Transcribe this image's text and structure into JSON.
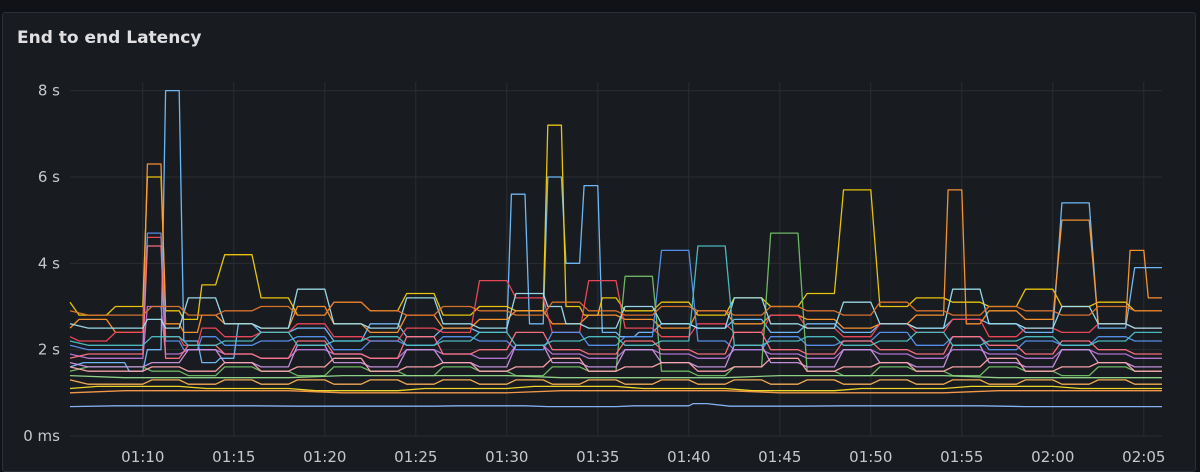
{
  "panel": {
    "title": "End to end Latency"
  },
  "chart_data": {
    "type": "line",
    "title": "End to end Latency",
    "x_ticks": [
      "01:10",
      "01:15",
      "01:20",
      "01:25",
      "01:30",
      "01:35",
      "01:40",
      "01:45",
      "01:50",
      "01:55",
      "02:00",
      "02:05"
    ],
    "y_ticks": [
      "0 ms",
      "2 s",
      "4 s",
      "6 s",
      "8 s"
    ],
    "x_unit": "minutes",
    "x_range": [
      "01:06",
      "02:06"
    ],
    "ylim": [
      0,
      8.2
    ],
    "grid": true,
    "legend": "none",
    "colors": {
      "background": "#181b1f",
      "grid": "#2a2d33",
      "series": [
        "#73bfff",
        "#f2cc0c",
        "#ff9830",
        "#f2495c",
        "#5794f2",
        "#b877d9",
        "#73bf69",
        "#ffb357",
        "#8ab8ff",
        "#ff7383",
        "#fade2a",
        "#ca95e5",
        "#96d98d",
        "#ff9f4d",
        "#9ee0f0",
        "#e0752d",
        "#4ec0c6",
        "#ffa6b0"
      ]
    },
    "series": [
      {
        "color": "#73bfff",
        "x": [
          0,
          3,
          4,
          5,
          6,
          7,
          8,
          9,
          10,
          12,
          14,
          16,
          18,
          20,
          22,
          24,
          25,
          26,
          27,
          28,
          29,
          30,
          31,
          32,
          34,
          36,
          38,
          40,
          42,
          44,
          46,
          48,
          50,
          52,
          54,
          56,
          58,
          60
        ],
        "values": [
          1.6,
          1.7,
          1.5,
          2.0,
          8.0,
          2.2,
          1.7,
          1.8,
          2.6,
          2.4,
          2.5,
          2.2,
          2.6,
          2.3,
          2.5,
          2.4,
          5.6,
          2.6,
          6.0,
          4.0,
          5.8,
          2.4,
          2.3,
          2.4,
          2.6,
          2.5,
          2.7,
          2.4,
          2.6,
          2.4,
          2.6,
          2.5,
          2.7,
          2.6,
          2.4,
          5.4,
          2.5,
          3.9
        ]
      },
      {
        "color": "#f2cc0c",
        "x": [
          0,
          2,
          4,
          5,
          6,
          7,
          8,
          10,
          12,
          14,
          16,
          18,
          20,
          22,
          24,
          26,
          27,
          28,
          29,
          30,
          32,
          34,
          36,
          38,
          40,
          42,
          44,
          46,
          48,
          50,
          52,
          54,
          56,
          58,
          60
        ],
        "values": [
          3.1,
          2.8,
          3.0,
          6.0,
          2.9,
          2.7,
          3.5,
          4.2,
          3.2,
          2.8,
          3.1,
          2.9,
          3.3,
          2.8,
          3.0,
          2.9,
          7.2,
          3.0,
          2.8,
          3.2,
          2.9,
          3.1,
          2.8,
          3.2,
          3.0,
          3.3,
          5.7,
          3.0,
          3.2,
          3.1,
          3.0,
          3.4,
          3.0,
          3.1,
          2.9
        ]
      },
      {
        "color": "#ff9830",
        "x": [
          0,
          2,
          4,
          5,
          6,
          7,
          8,
          10,
          12,
          14,
          16,
          18,
          20,
          22,
          24,
          26,
          28,
          30,
          32,
          34,
          36,
          38,
          40,
          42,
          44,
          46,
          48,
          49,
          50,
          52,
          54,
          56,
          58,
          59,
          60
        ],
        "values": [
          2.5,
          2.7,
          2.4,
          6.3,
          2.6,
          2.4,
          2.8,
          2.6,
          2.5,
          3.0,
          2.6,
          2.4,
          2.8,
          2.5,
          2.7,
          2.9,
          2.6,
          2.8,
          2.7,
          2.5,
          2.9,
          2.6,
          2.8,
          2.7,
          2.5,
          2.6,
          2.8,
          5.7,
          2.6,
          2.9,
          2.7,
          5.0,
          2.6,
          4.3,
          3.2
        ]
      },
      {
        "color": "#f2495c",
        "x": [
          0,
          2,
          4,
          5,
          6,
          7,
          8,
          10,
          12,
          14,
          16,
          18,
          20,
          22,
          24,
          26,
          28,
          30,
          32,
          34,
          36,
          38,
          40,
          42,
          44,
          46,
          48,
          50,
          52,
          54,
          56,
          58,
          60
        ],
        "values": [
          2.3,
          2.2,
          2.4,
          4.6,
          2.3,
          2.1,
          2.5,
          2.3,
          2.4,
          2.6,
          2.3,
          2.2,
          2.5,
          2.4,
          3.6,
          3.2,
          2.4,
          3.6,
          2.5,
          2.3,
          2.6,
          2.4,
          2.8,
          2.5,
          2.3,
          2.6,
          2.4,
          2.7,
          2.3,
          2.5,
          2.4,
          2.6,
          2.5
        ]
      },
      {
        "color": "#5794f2",
        "x": [
          0,
          4,
          5,
          6,
          7,
          8,
          10,
          12,
          14,
          16,
          18,
          20,
          22,
          24,
          26,
          28,
          30,
          32,
          34,
          36,
          38,
          40,
          42,
          44,
          46,
          48,
          50,
          52,
          54,
          56,
          58,
          60
        ],
        "values": [
          2.1,
          2.0,
          4.7,
          2.2,
          2.0,
          2.3,
          2.1,
          2.2,
          2.3,
          2.0,
          2.2,
          2.1,
          2.3,
          2.2,
          2.0,
          2.4,
          2.1,
          2.3,
          4.3,
          2.2,
          2.0,
          2.3,
          2.1,
          2.2,
          2.4,
          2.1,
          2.3,
          2.0,
          2.2,
          2.1,
          2.3,
          2.2
        ]
      },
      {
        "color": "#b877d9",
        "x": [
          0,
          4,
          5,
          6,
          8,
          10,
          12,
          14,
          16,
          18,
          20,
          22,
          24,
          26,
          28,
          30,
          32,
          34,
          36,
          38,
          40,
          42,
          44,
          46,
          48,
          50,
          52,
          54,
          56,
          58,
          60
        ],
        "values": [
          1.9,
          1.8,
          3.0,
          1.9,
          2.0,
          1.9,
          1.8,
          2.0,
          1.9,
          1.8,
          2.0,
          1.9,
          1.8,
          2.1,
          1.9,
          1.8,
          2.0,
          1.9,
          1.8,
          2.0,
          1.9,
          1.8,
          2.0,
          1.9,
          1.8,
          2.0,
          1.9,
          1.8,
          2.0,
          1.9,
          1.8
        ]
      },
      {
        "color": "#73bf69",
        "x": [
          0,
          4,
          6,
          8,
          10,
          12,
          14,
          16,
          18,
          20,
          22,
          24,
          26,
          28,
          30,
          32,
          34,
          36,
          38,
          40,
          42,
          44,
          46,
          48,
          50,
          52,
          54,
          56,
          58,
          60
        ],
        "values": [
          1.5,
          1.6,
          1.5,
          1.4,
          1.6,
          1.5,
          1.4,
          1.6,
          1.5,
          1.4,
          1.6,
          1.5,
          1.4,
          1.6,
          1.5,
          3.7,
          1.5,
          1.4,
          1.6,
          4.7,
          1.5,
          1.4,
          1.6,
          1.5,
          1.4,
          1.6,
          1.5,
          1.4,
          1.6,
          1.5
        ]
      },
      {
        "color": "#ffb357",
        "x": [
          0,
          4,
          6,
          8,
          10,
          12,
          14,
          16,
          18,
          20,
          22,
          24,
          26,
          28,
          30,
          32,
          34,
          36,
          38,
          40,
          42,
          44,
          46,
          48,
          50,
          52,
          54,
          56,
          58,
          60
        ],
        "values": [
          1.3,
          1.2,
          1.3,
          1.2,
          1.3,
          1.2,
          1.3,
          1.2,
          1.3,
          1.2,
          1.3,
          1.2,
          1.3,
          1.2,
          1.3,
          1.2,
          1.3,
          1.2,
          1.3,
          1.2,
          1.3,
          1.2,
          1.3,
          1.2,
          1.3,
          1.2,
          1.3,
          1.2,
          1.3,
          1.2
        ]
      },
      {
        "color": "#8ab8ff",
        "x": [
          0,
          10,
          20,
          25,
          30,
          34,
          35,
          40,
          50,
          60
        ],
        "values": [
          0.68,
          0.7,
          0.69,
          0.7,
          0.68,
          0.7,
          0.75,
          0.69,
          0.7,
          0.68
        ]
      },
      {
        "color": "#ff7383",
        "x": [
          0,
          4,
          5,
          6,
          8,
          10,
          12,
          14,
          16,
          18,
          20,
          22,
          24,
          26,
          28,
          30,
          32,
          34,
          36,
          38,
          40,
          42,
          44,
          46,
          48,
          50,
          52,
          54,
          56,
          58,
          60
        ],
        "values": [
          1.8,
          1.9,
          4.4,
          1.8,
          2.1,
          1.9,
          1.8,
          2.2,
          1.9,
          1.8,
          2.3,
          1.9,
          2.0,
          2.4,
          2.0,
          1.9,
          2.2,
          2.0,
          1.9,
          2.4,
          2.0,
          1.9,
          2.2,
          2.0,
          1.9,
          2.3,
          2.1,
          1.9,
          2.2,
          2.0,
          1.9
        ]
      },
      {
        "color": "#fade2a",
        "x": [
          0,
          6,
          12,
          18,
          24,
          30,
          36,
          42,
          48,
          54,
          60
        ],
        "values": [
          1.1,
          1.15,
          1.1,
          1.05,
          1.1,
          1.15,
          1.1,
          1.05,
          1.1,
          1.15,
          1.1
        ]
      },
      {
        "color": "#ca95e5",
        "x": [
          0,
          4,
          6,
          8,
          10,
          12,
          14,
          16,
          18,
          20,
          22,
          24,
          26,
          28,
          30,
          32,
          34,
          36,
          38,
          40,
          42,
          44,
          46,
          48,
          50,
          52,
          54,
          56,
          58,
          60
        ],
        "values": [
          1.7,
          1.6,
          1.7,
          2.0,
          1.7,
          1.6,
          2.1,
          1.7,
          1.6,
          2.0,
          1.7,
          1.6,
          2.1,
          1.7,
          1.6,
          2.0,
          1.7,
          1.6,
          2.1,
          1.7,
          1.6,
          2.0,
          1.7,
          1.6,
          2.1,
          1.7,
          1.6,
          2.0,
          1.7,
          1.6
        ]
      },
      {
        "color": "#96d98d",
        "x": [
          0,
          12,
          24,
          36,
          48,
          60
        ],
        "values": [
          1.4,
          1.35,
          1.4,
          1.35,
          1.4,
          1.35
        ]
      },
      {
        "color": "#ff9f4d",
        "x": [
          0,
          12,
          24,
          36,
          48,
          60
        ],
        "values": [
          1.0,
          1.05,
          1.0,
          1.05,
          1.0,
          1.05
        ]
      },
      {
        "color": "#9ee0f0",
        "x": [
          0,
          4,
          5,
          6,
          8,
          10,
          12,
          14,
          16,
          18,
          20,
          22,
          24,
          26,
          27,
          28,
          30,
          32,
          34,
          36,
          38,
          40,
          42,
          44,
          46,
          48,
          50,
          52,
          54,
          56,
          58,
          60
        ],
        "values": [
          2.6,
          2.5,
          2.7,
          2.5,
          3.2,
          2.6,
          2.5,
          3.4,
          2.6,
          2.5,
          3.2,
          2.6,
          2.5,
          3.3,
          3.0,
          2.6,
          2.5,
          3.0,
          2.6,
          2.5,
          3.2,
          2.6,
          2.5,
          3.1,
          2.6,
          2.5,
          3.4,
          2.6,
          2.5,
          3.0,
          2.6,
          2.5
        ]
      },
      {
        "color": "#e0752d",
        "x": [
          0,
          4,
          6,
          8,
          10,
          12,
          14,
          16,
          18,
          20,
          22,
          24,
          26,
          28,
          30,
          32,
          34,
          36,
          38,
          40,
          42,
          44,
          46,
          48,
          50,
          52,
          54,
          56,
          58,
          60
        ],
        "values": [
          2.9,
          2.8,
          3.0,
          2.8,
          2.9,
          3.0,
          2.8,
          3.1,
          2.9,
          2.8,
          3.0,
          2.9,
          2.8,
          3.1,
          2.9,
          2.8,
          3.0,
          2.9,
          2.8,
          3.0,
          2.9,
          2.8,
          3.1,
          2.9,
          2.8,
          3.0,
          2.9,
          2.8,
          3.0,
          2.9
        ]
      },
      {
        "color": "#4ec0c6",
        "x": [
          0,
          4,
          6,
          8,
          10,
          12,
          14,
          16,
          18,
          20,
          22,
          24,
          26,
          28,
          30,
          32,
          34,
          36,
          38,
          40,
          42,
          44,
          46,
          48,
          50,
          52,
          54,
          56,
          58,
          60
        ],
        "values": [
          2.2,
          2.1,
          2.3,
          2.1,
          2.2,
          2.4,
          2.1,
          2.2,
          2.3,
          2.1,
          2.2,
          2.4,
          2.1,
          2.2,
          2.3,
          2.1,
          2.2,
          4.4,
          2.1,
          2.2,
          2.3,
          2.1,
          2.2,
          2.4,
          2.1,
          2.2,
          2.3,
          2.1,
          2.2,
          2.4
        ]
      },
      {
        "color": "#ffa6b0",
        "x": [
          0,
          4,
          6,
          8,
          10,
          12,
          14,
          16,
          18,
          20,
          22,
          24,
          26,
          28,
          30,
          32,
          34,
          36,
          38,
          40,
          42,
          44,
          46,
          48,
          50,
          52,
          54,
          56,
          58,
          60
        ],
        "values": [
          1.6,
          1.5,
          1.6,
          1.5,
          1.7,
          1.5,
          1.6,
          1.8,
          1.5,
          1.6,
          1.7,
          1.5,
          1.6,
          1.8,
          1.5,
          1.6,
          1.7,
          1.5,
          1.6,
          1.8,
          1.5,
          1.6,
          1.7,
          1.5,
          1.6,
          1.8,
          1.5,
          1.6,
          1.7,
          1.5
        ]
      }
    ]
  }
}
